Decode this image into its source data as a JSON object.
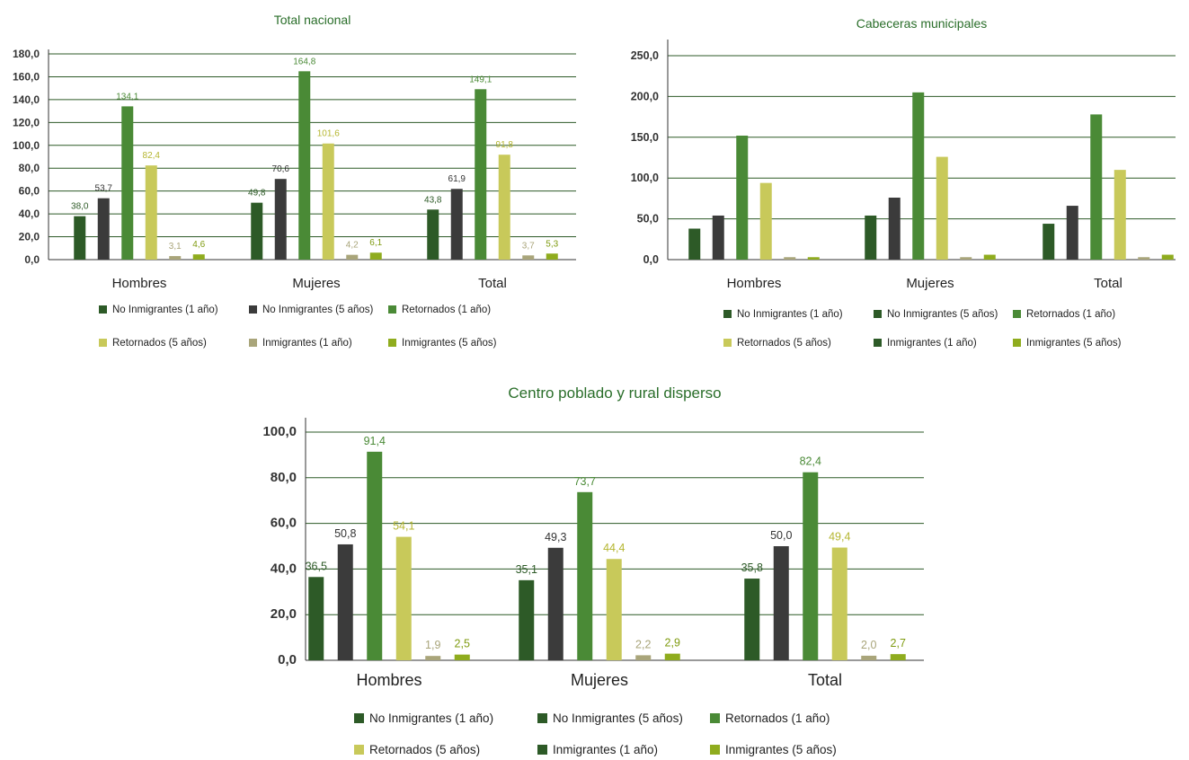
{
  "chart_data": [
    {
      "type": "bar",
      "title": "Total nacional",
      "categories": [
        "Hombres",
        "Mujeres",
        "Total"
      ],
      "ylim": [
        0,
        180
      ],
      "yticks": [
        "0,0",
        "20,0",
        "40,0",
        "60,0",
        "80,0",
        "100,0",
        "120,0",
        "140,0",
        "160,0",
        "180,0"
      ],
      "ytick_values": [
        0,
        20,
        40,
        60,
        80,
        100,
        120,
        140,
        160,
        180
      ],
      "show_data_labels": true,
      "grid": true,
      "legend_position": "bottom",
      "series": [
        {
          "name": "No Inmigrantes (1 año)",
          "color": "#2d5a27",
          "legend_color": "#2d5a27",
          "values": [
            38.0,
            49.8,
            43.8
          ],
          "labels": [
            "38,0",
            "49,8",
            "43,8"
          ]
        },
        {
          "name": "No Inmigrantes (5 años)",
          "color": "#3b3b3b",
          "legend_color": "#3b3b3b",
          "values": [
            53.7,
            70.6,
            61.9
          ],
          "labels": [
            "53,7",
            "70,6",
            "61,9"
          ]
        },
        {
          "name": "Retornados (1 año)",
          "color": "#4a8a36",
          "legend_color": "#4a8a36",
          "values": [
            134.1,
            164.8,
            149.1
          ],
          "labels": [
            "134,1",
            "164,8",
            "149,1"
          ]
        },
        {
          "name": "Retornados (5 años)",
          "color": "#c8c95a",
          "legend_color": "#c8c95a",
          "values": [
            82.4,
            101.6,
            91.8
          ],
          "labels": [
            "82,4",
            "101,6",
            "91,8"
          ]
        },
        {
          "name": "Inmigrantes (1 año)",
          "color": "#a9a57a",
          "legend_color": "#a9a57a",
          "values": [
            3.1,
            4.2,
            3.7
          ],
          "labels": [
            "3,1",
            "4,2",
            "3,7"
          ]
        },
        {
          "name": "Inmigrantes (5 años)",
          "color": "#8fac1e",
          "legend_color": "#8fac1e",
          "values": [
            4.6,
            6.1,
            5.3
          ],
          "labels": [
            "4,6",
            "6,1",
            "5,3"
          ]
        }
      ]
    },
    {
      "type": "bar",
      "title": "Cabeceras municipales",
      "categories": [
        "Hombres",
        "Mujeres",
        "Total"
      ],
      "ylim": [
        0,
        250
      ],
      "yticks": [
        "0,0",
        "50,0",
        "100,0",
        "150,0",
        "200,0",
        "250,0"
      ],
      "ytick_values": [
        0,
        50,
        100,
        150,
        200,
        250
      ],
      "show_data_labels": false,
      "grid": true,
      "legend_position": "bottom",
      "series": [
        {
          "name": "No Inmigrantes (1 año)",
          "color": "#2d5a27",
          "legend_color": "#2d5a27",
          "values": [
            38,
            54,
            44
          ]
        },
        {
          "name": "No Inmigrantes (5 años)",
          "color": "#3b3b3b",
          "legend_color": "#2d5a27",
          "values": [
            54,
            76,
            66
          ]
        },
        {
          "name": "Retornados (1 año)",
          "color": "#4a8a36",
          "legend_color": "#4a8a36",
          "values": [
            152,
            205,
            178
          ]
        },
        {
          "name": "Retornados (5 años)",
          "color": "#c8c95a",
          "legend_color": "#c8c95a",
          "values": [
            94,
            126,
            110
          ]
        },
        {
          "name": "Inmigrantes (1 año)",
          "color": "#a9a57a",
          "legend_color": "#2d5a27",
          "values": [
            3,
            3,
            3
          ]
        },
        {
          "name": "Inmigrantes (5 años)",
          "color": "#8fac1e",
          "legend_color": "#8fac1e",
          "values": [
            3,
            6,
            6
          ]
        }
      ]
    },
    {
      "type": "bar",
      "title": "Centro poblado y rural disperso",
      "categories": [
        "Hombres",
        "Mujeres",
        "Total"
      ],
      "ylim": [
        0,
        100
      ],
      "yticks": [
        "0,0",
        "20,0",
        "40,0",
        "60,0",
        "80,0",
        "100,0"
      ],
      "ytick_values": [
        0,
        20,
        40,
        60,
        80,
        100
      ],
      "show_data_labels": true,
      "grid": true,
      "legend_position": "bottom",
      "series": [
        {
          "name": "No Inmigrantes (1 año)",
          "color": "#2d5a27",
          "legend_color": "#2d5a27",
          "values": [
            36.5,
            35.1,
            35.8
          ],
          "labels": [
            "36,5",
            "35,1",
            "35,8"
          ]
        },
        {
          "name": "No Inmigrantes (5 años)",
          "color": "#3b3b3b",
          "legend_color": "#2d5a27",
          "values": [
            50.8,
            49.3,
            50.0
          ],
          "labels": [
            "50,8",
            "49,3",
            "50,0"
          ]
        },
        {
          "name": "Retornados (1 año)",
          "color": "#4a8a36",
          "legend_color": "#4a8a36",
          "values": [
            91.4,
            73.7,
            82.4
          ],
          "labels": [
            "91,4",
            "73,7",
            "82,4"
          ]
        },
        {
          "name": "Retornados (5 años)",
          "color": "#c8c95a",
          "legend_color": "#c8c95a",
          "values": [
            54.1,
            44.4,
            49.4
          ],
          "labels": [
            "54,1",
            "44,4",
            "49,4"
          ]
        },
        {
          "name": "Inmigrantes (1 año)",
          "color": "#a9a57a",
          "legend_color": "#2d5a27",
          "values": [
            1.9,
            2.2,
            2.0
          ],
          "labels": [
            "1,9",
            "2,2",
            "2,0"
          ]
        },
        {
          "name": "Inmigrantes (5 años)",
          "color": "#8fac1e",
          "legend_color": "#8fac1e",
          "values": [
            2.5,
            2.9,
            2.7
          ],
          "labels": [
            "2,5",
            "2,9",
            "2,7"
          ]
        }
      ]
    }
  ],
  "data_label_colors": [
    "#2d5a27",
    "#333333",
    "#4a8a36",
    "#b5b630",
    "#a9a57a",
    "#7f9b10"
  ]
}
